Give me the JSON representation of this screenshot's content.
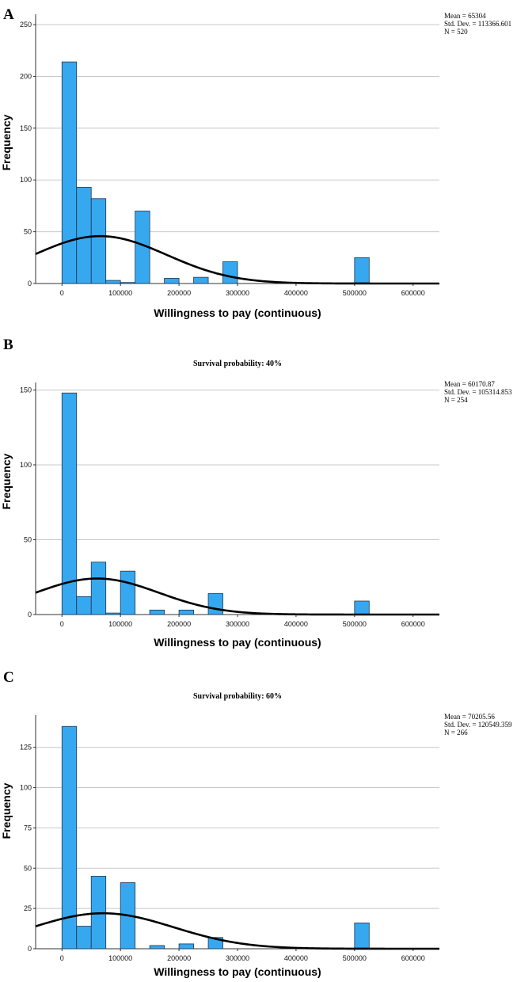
{
  "chart_data": [
    {
      "type": "bar",
      "panel": "A",
      "title": "",
      "xlabel": "Willingness to pay (continuous)",
      "ylabel": "Frequency",
      "xlim": [
        -45000,
        645000
      ],
      "ylim": [
        0,
        260
      ],
      "xticks": [
        0,
        100000,
        200000,
        300000,
        400000,
        500000,
        600000
      ],
      "xtick_labels": [
        "0",
        "100000",
        "200000",
        "300000",
        "400000",
        "500000",
        "600000"
      ],
      "yticks": [
        0,
        50,
        100,
        150,
        200,
        250
      ],
      "ytick_labels": [
        "0",
        "50",
        "100",
        "150",
        "200",
        "250"
      ],
      "bin_width": 25000,
      "bins": [
        {
          "start": 0,
          "count": 214
        },
        {
          "start": 25000,
          "count": 93
        },
        {
          "start": 50000,
          "count": 82
        },
        {
          "start": 75000,
          "count": 3
        },
        {
          "start": 100000,
          "count": 1
        },
        {
          "start": 125000,
          "count": 70
        },
        {
          "start": 175000,
          "count": 5
        },
        {
          "start": 225000,
          "count": 6
        },
        {
          "start": 275000,
          "count": 21
        },
        {
          "start": 500000,
          "count": 25
        }
      ],
      "normal_curve": {
        "mean": 65304,
        "sd": 113366.601,
        "n": 520
      },
      "stats_text": [
        "Mean = 65304",
        "Std. Dev. = 113366.601",
        "N = 520"
      ],
      "grid": true
    },
    {
      "type": "bar",
      "panel": "B",
      "title": "Survival probability: 40%",
      "xlabel": "Willingness to pay (continuous)",
      "ylabel": "Frequency",
      "xlim": [
        -45000,
        645000
      ],
      "ylim": [
        0,
        155
      ],
      "xticks": [
        0,
        100000,
        200000,
        300000,
        400000,
        500000,
        600000
      ],
      "xtick_labels": [
        "0",
        "100000",
        "200000",
        "300000",
        "400000",
        "500000",
        "600000"
      ],
      "yticks": [
        0,
        50,
        100,
        150
      ],
      "ytick_labels": [
        "0",
        "50",
        "100",
        "150"
      ],
      "bin_width": 25000,
      "bins": [
        {
          "start": 0,
          "count": 148
        },
        {
          "start": 25000,
          "count": 12
        },
        {
          "start": 50000,
          "count": 35
        },
        {
          "start": 75000,
          "count": 1
        },
        {
          "start": 100000,
          "count": 29
        },
        {
          "start": 150000,
          "count": 3
        },
        {
          "start": 200000,
          "count": 3
        },
        {
          "start": 250000,
          "count": 14
        },
        {
          "start": 500000,
          "count": 9
        }
      ],
      "normal_curve": {
        "mean": 60170.87,
        "sd": 105314.853,
        "n": 254
      },
      "stats_text": [
        "Mean = 60170.87",
        "Std. Dev. = 105314.853",
        "N = 254"
      ],
      "grid": true
    },
    {
      "type": "bar",
      "panel": "C",
      "title": "Survival probability: 60%",
      "xlabel": "Willingness to pay (continuous)",
      "ylabel": "Frequency",
      "xlim": [
        -45000,
        645000
      ],
      "ylim": [
        0,
        145
      ],
      "xticks": [
        0,
        100000,
        200000,
        300000,
        400000,
        500000,
        600000
      ],
      "xtick_labels": [
        "0",
        "100000",
        "200000",
        "300000",
        "400000",
        "500000",
        "600000"
      ],
      "yticks": [
        0,
        25,
        50,
        75,
        100,
        125
      ],
      "ytick_labels": [
        "0",
        "25",
        "50",
        "75",
        "100",
        "125"
      ],
      "bin_width": 25000,
      "bins": [
        {
          "start": 0,
          "count": 138
        },
        {
          "start": 25000,
          "count": 14
        },
        {
          "start": 50000,
          "count": 45
        },
        {
          "start": 100000,
          "count": 41
        },
        {
          "start": 150000,
          "count": 2
        },
        {
          "start": 200000,
          "count": 3
        },
        {
          "start": 250000,
          "count": 7
        },
        {
          "start": 500000,
          "count": 16
        }
      ],
      "normal_curve": {
        "mean": 70205.56,
        "sd": 120549.359,
        "n": 266
      },
      "stats_text": [
        "Mean = 70205.56",
        "Std. Dev. = 120549.359",
        "N = 266"
      ],
      "grid": true
    }
  ],
  "colors": {
    "bar_fill": "#36a8f0",
    "bar_stroke": "#1f3550",
    "grid": "#c8c8c8",
    "curve": "#000000",
    "axis": "#333333"
  }
}
